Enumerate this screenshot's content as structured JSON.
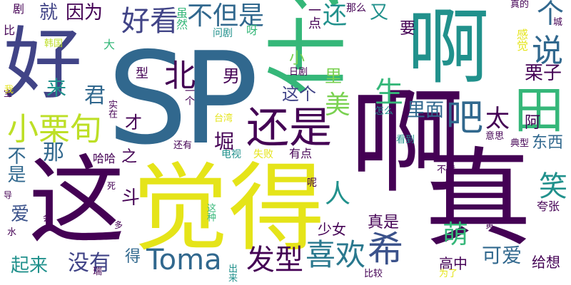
{
  "palette": {
    "dark_purple": "#440154",
    "indigo": "#3b528b",
    "blue": "#31688e",
    "teal": "#21918c",
    "green": "#35b779",
    "yellow": "#e5e419",
    "light_green": "#90d743"
  },
  "words": [
    {
      "text": "SP",
      "color": "#31688e"
    },
    {
      "text": "好",
      "color": "#414487"
    },
    {
      "text": "啊",
      "color": "#440154"
    },
    {
      "text": "真",
      "color": "#440154"
    },
    {
      "text": "觉得",
      "color": "#e5e419"
    },
    {
      "text": "这",
      "color": "#440154"
    },
    {
      "text": "什么",
      "color": "#35b779"
    },
    {
      "text": "啊",
      "color": "#21918c"
    },
    {
      "text": "田",
      "color": "#35b779"
    },
    {
      "text": "还是",
      "color": "#440154"
    },
    {
      "text": "小栗旬",
      "color": "#bddf26"
    },
    {
      "text": "好看",
      "color": "#414487"
    },
    {
      "text": "不但是",
      "color": "#31688e"
    },
    {
      "text": "北",
      "color": "#440154"
    },
    {
      "text": "说",
      "color": "#31688e"
    },
    {
      "text": "个",
      "color": "#31688e"
    },
    {
      "text": "吧",
      "color": "#31688e"
    },
    {
      "text": "Toma",
      "color": "#31688e"
    },
    {
      "text": "发型",
      "color": "#440154"
    },
    {
      "text": "喜欢",
      "color": "#2a788e"
    },
    {
      "text": "希",
      "color": "#3b528b"
    },
    {
      "text": "萌",
      "color": "#35b779"
    },
    {
      "text": "可爱",
      "color": "#31688e"
    },
    {
      "text": "笑",
      "color": "#21918c"
    },
    {
      "text": "生",
      "color": "#35b779"
    },
    {
      "text": "美",
      "color": "#7ad151"
    },
    {
      "text": "君",
      "color": "#31688e"
    },
    {
      "text": "因为",
      "color": "#440154"
    },
    {
      "text": "就",
      "color": "#414487"
    },
    {
      "text": "还",
      "color": "#21918c"
    },
    {
      "text": "又",
      "color": "#21918c"
    },
    {
      "text": "堀",
      "color": "#440154"
    },
    {
      "text": "人",
      "color": "#21918c"
    },
    {
      "text": "太",
      "color": "#440154"
    },
    {
      "text": "栗子",
      "color": "#440154"
    },
    {
      "text": "里面",
      "color": "#31688e"
    },
    {
      "text": "没有",
      "color": "#414487"
    },
    {
      "text": "起来",
      "color": "#21918c"
    },
    {
      "text": "不是",
      "color": "#31688e"
    },
    {
      "text": "那",
      "color": "#31688e"
    },
    {
      "text": "斗",
      "color": "#440154"
    },
    {
      "text": "得",
      "color": "#31688e"
    },
    {
      "text": "来",
      "color": "#21918c"
    },
    {
      "text": "男",
      "color": "#440154"
    },
    {
      "text": "里",
      "color": "#7ad151"
    },
    {
      "text": "小",
      "color": "#7ad151"
    },
    {
      "text": "这个",
      "color": "#414487"
    },
    {
      "text": "才",
      "color": "#440154"
    },
    {
      "text": "阿",
      "color": "#440154"
    },
    {
      "text": "东西",
      "color": "#31688e"
    },
    {
      "text": "真是",
      "color": "#440154"
    },
    {
      "text": "少女",
      "color": "#440154"
    },
    {
      "text": "高中",
      "color": "#440154"
    },
    {
      "text": "给想",
      "color": "#440154"
    },
    {
      "text": "爱",
      "color": "#3b528b"
    },
    {
      "text": "要",
      "color": "#440154"
    },
    {
      "text": "一点",
      "color": "#440154"
    },
    {
      "text": "感觉",
      "color": "#e5e419"
    },
    {
      "text": "虽然",
      "color": "#35b779"
    },
    {
      "text": "型",
      "color": "#440154"
    },
    {
      "text": "之",
      "color": "#440154"
    },
    {
      "text": "哈哈",
      "color": "#440154"
    },
    {
      "text": "剧",
      "color": "#440154"
    },
    {
      "text": "比",
      "color": "#440154"
    },
    {
      "text": "大",
      "color": "#35b779"
    },
    {
      "text": "呀",
      "color": "#35b779"
    },
    {
      "text": "问剧",
      "color": "#21918c"
    },
    {
      "text": "那么",
      "color": "#440154"
    },
    {
      "text": "真的",
      "color": "#440154"
    },
    {
      "text": "城",
      "color": "#440154"
    },
    {
      "text": "日剧",
      "color": "#440154"
    },
    {
      "text": "一个",
      "color": "#440154"
    },
    {
      "text": "台湾",
      "color": "#e5e419"
    },
    {
      "text": "怎么",
      "color": "#21918c"
    },
    {
      "text": "看到",
      "color": "#21918c"
    },
    {
      "text": "意思",
      "color": "#440154"
    },
    {
      "text": "典型",
      "color": "#440154"
    },
    {
      "text": "电视",
      "color": "#21918c"
    },
    {
      "text": "有点",
      "color": "#440154"
    },
    {
      "text": "失败",
      "color": "#e5e419"
    },
    {
      "text": "还有",
      "color": "#440154"
    },
    {
      "text": "实在",
      "color": "#440154"
    },
    {
      "text": "韩国",
      "color": "#bddf26"
    },
    {
      "text": "不错",
      "color": "#440154"
    },
    {
      "text": "夸张",
      "color": "#440154"
    },
    {
      "text": "呢",
      "color": "#440154"
    },
    {
      "text": "会",
      "color": "#440154"
    },
    {
      "text": "水",
      "color": "#440154"
    },
    {
      "text": "多",
      "color": "#440154"
    },
    {
      "text": "宝",
      "color": "#440154"
    },
    {
      "text": "这种",
      "color": "#35b779"
    },
    {
      "text": "比较",
      "color": "#440154"
    },
    {
      "text": "为了",
      "color": "#e5e419"
    },
    {
      "text": "出来",
      "color": "#21918c"
    },
    {
      "text": "瑞",
      "color": "#440154"
    },
    {
      "text": "死",
      "color": "#440154"
    },
    {
      "text": "导",
      "color": "#440154"
    },
    {
      "text": "我",
      "color": "#e5e419"
    },
    {
      "text": "黄",
      "color": "#440154"
    }
  ]
}
